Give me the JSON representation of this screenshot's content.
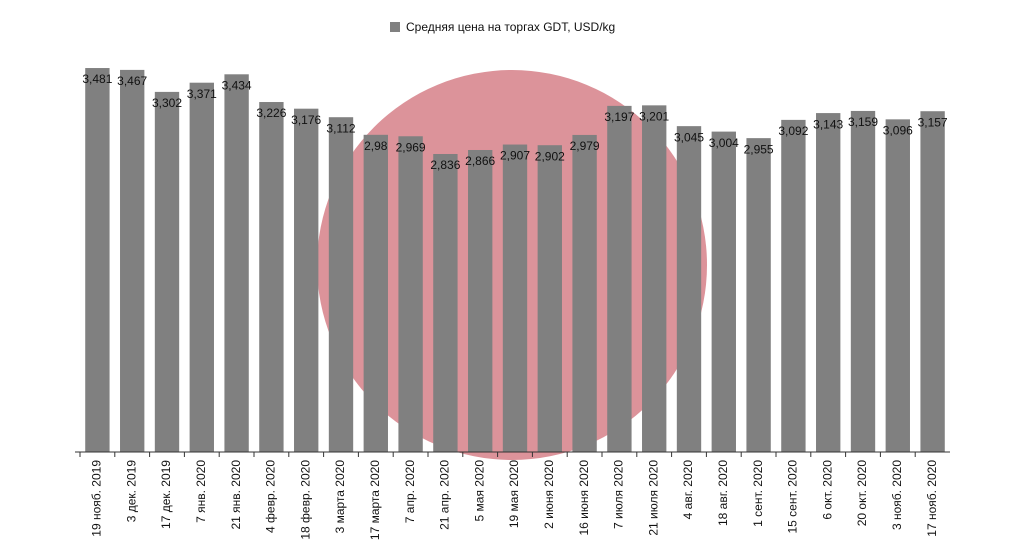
{
  "chart_data": {
    "type": "bar",
    "categories": [
      "19 нояб. 2019",
      "3 дек. 2019",
      "17 дек. 2019",
      "7 янв. 2020",
      "21 янв. 2020",
      "4 февр. 2020",
      "18 февр. 2020",
      "3 марта 2020",
      "17 марта 2020",
      "7 апр. 2020",
      "21 апр. 2020",
      "5 мая 2020",
      "19 мая 2020",
      "2 июня 2020",
      "16 июня 2020",
      "7 июля 2020",
      "21 июля 2020",
      "4 авг. 2020",
      "18 авг. 2020",
      "1 сент. 2020",
      "15 сент. 2020",
      "6 окт. 2020",
      "20 окт. 2020",
      "3 нояб. 2020",
      "17 нояб. 2020"
    ],
    "series": [
      {
        "name": "Средняя цена на торгах GDT,  USD/kg",
        "color": "#808080",
        "values": [
          3.481,
          3.467,
          3.302,
          3.371,
          3.434,
          3.226,
          3.176,
          3.112,
          2.98,
          2.969,
          2.836,
          2.866,
          2.907,
          2.902,
          2.979,
          3.197,
          3.201,
          3.045,
          3.004,
          2.955,
          3.092,
          3.143,
          3.159,
          3.096,
          3.157
        ],
        "value_labels": [
          "3,481",
          "3,467",
          "3,302",
          "3,371",
          "3,434",
          "3,226",
          "3,176",
          "3,112",
          "2,98",
          "2,969",
          "2,836",
          "2,866",
          "2,907",
          "2,902",
          "2,979",
          "3,197",
          "3,201",
          "3,045",
          "3,004",
          "2,955",
          "3,092",
          "3,143",
          "3,159",
          "3,096",
          "3,157"
        ]
      }
    ],
    "ylim": [
      0.6,
      3.5
    ],
    "legend": "top"
  }
}
